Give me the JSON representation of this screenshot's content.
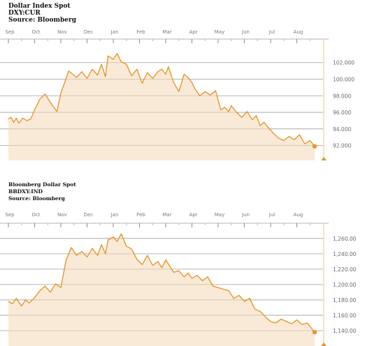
{
  "chart_data": [
    {
      "type": "area",
      "header": [
        "Dollar Index Spot",
        "DXY:CUR",
        "Source: Bloomberg"
      ],
      "months": [
        "Sep",
        "Oct",
        "Nov",
        "Dec",
        "Jan",
        "Feb",
        "Mar",
        "Apr",
        "May",
        "Jun",
        "Jul",
        "Aug"
      ],
      "ytick_labels": [
        "102.000",
        "100.000",
        "98.000",
        "96.000",
        "94.000",
        "92.000"
      ],
      "ytick_values": [
        102,
        100,
        98,
        96,
        94,
        92
      ],
      "ylim": [
        90.2,
        104.5
      ],
      "series": [
        {
          "x": [
            0,
            0.1,
            0.2,
            0.3,
            0.4,
            0.55,
            0.7,
            0.85,
            1.0,
            1.2,
            1.4,
            1.6,
            1.85,
            2.0,
            2.3,
            2.6,
            2.8,
            3.0,
            3.2,
            3.4,
            3.55,
            3.7,
            3.8,
            4.0,
            4.15,
            4.3,
            4.5,
            4.7,
            4.9,
            5.1,
            5.3,
            5.5,
            5.7,
            5.85,
            6.0,
            6.1,
            6.3,
            6.5,
            6.7,
            6.85,
            7.0,
            7.1,
            7.3,
            7.5,
            7.7,
            7.9,
            8.1,
            8.25,
            8.4,
            8.5,
            8.7,
            8.9,
            9.1,
            9.3,
            9.45,
            9.6,
            9.75,
            9.9,
            10.1,
            10.3,
            10.5,
            10.7,
            10.9,
            11.1,
            11.3,
            11.5,
            11.68
          ],
          "values": [
            95.2,
            95.4,
            94.8,
            95.3,
            94.7,
            95.3,
            95.0,
            95.2,
            96.3,
            97.6,
            98.2,
            97.2,
            96.1,
            98.3,
            101.0,
            100.2,
            100.9,
            100.1,
            101.2,
            100.5,
            101.8,
            100.3,
            102.8,
            102.4,
            103.1,
            102.1,
            101.8,
            100.4,
            101.2,
            99.5,
            100.8,
            100.1,
            100.9,
            101.2,
            100.6,
            101.5,
            99.6,
            98.5,
            100.6,
            100.2,
            99.6,
            98.9,
            98.0,
            98.5,
            98.1,
            98.6,
            96.3,
            96.6,
            96.1,
            96.8,
            96.0,
            95.4,
            96.1,
            95.1,
            95.6,
            94.4,
            94.8,
            94.2,
            93.5,
            92.9,
            92.6,
            93.1,
            92.7,
            93.3,
            92.2,
            92.6,
            91.9
          ]
        }
      ]
    },
    {
      "type": "area",
      "header": [
        "Bloomberg Dollar Spot",
        "BBDXY:IND",
        "Source: Bloomberg"
      ],
      "months": [
        "Sep",
        "Oct",
        "Nov",
        "Dec",
        "Jan",
        "Feb",
        "Mar",
        "Apr",
        "May",
        "Jun",
        "Jul",
        "Aug"
      ],
      "ytick_labels": [
        "1,260.00",
        "1,240.00",
        "1,220.00",
        "1,200.00",
        "1,180.00",
        "1,160.00",
        "1,140.00"
      ],
      "ytick_values": [
        1260,
        1240,
        1220,
        1200,
        1180,
        1160,
        1140
      ],
      "ylim": [
        1120,
        1278
      ],
      "series": [
        {
          "x": [
            0,
            0.15,
            0.3,
            0.5,
            0.65,
            0.8,
            1.0,
            1.2,
            1.4,
            1.6,
            1.8,
            2.0,
            2.2,
            2.4,
            2.6,
            2.8,
            3.0,
            3.2,
            3.4,
            3.55,
            3.7,
            3.8,
            4.0,
            4.15,
            4.3,
            4.5,
            4.7,
            4.9,
            5.1,
            5.3,
            5.5,
            5.7,
            5.85,
            6.0,
            6.1,
            6.3,
            6.5,
            6.7,
            6.85,
            7.0,
            7.2,
            7.4,
            7.6,
            7.8,
            8.0,
            8.2,
            8.4,
            8.6,
            8.8,
            9.0,
            9.2,
            9.4,
            9.6,
            9.8,
            10.0,
            10.2,
            10.4,
            10.6,
            10.8,
            11.0,
            11.2,
            11.4,
            11.68
          ],
          "values": [
            1178,
            1175,
            1182,
            1172,
            1180,
            1176,
            1183,
            1192,
            1198,
            1190,
            1201,
            1196,
            1232,
            1248,
            1238,
            1243,
            1236,
            1247,
            1238,
            1252,
            1240,
            1258,
            1262,
            1256,
            1266,
            1250,
            1246,
            1233,
            1226,
            1238,
            1225,
            1230,
            1222,
            1232,
            1227,
            1216,
            1218,
            1210,
            1215,
            1208,
            1212,
            1205,
            1210,
            1198,
            1196,
            1194,
            1192,
            1182,
            1186,
            1178,
            1182,
            1168,
            1165,
            1158,
            1152,
            1150,
            1155,
            1152,
            1149,
            1154,
            1148,
            1150,
            1138
          ]
        }
      ]
    }
  ]
}
